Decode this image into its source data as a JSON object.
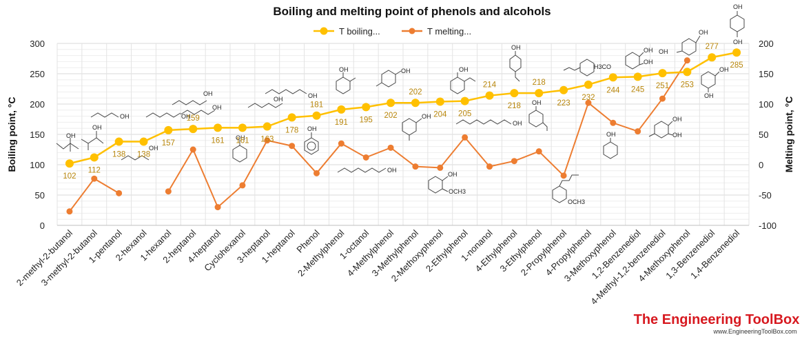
{
  "chart_data": {
    "type": "line",
    "title": "Boiling and melting point of phenols and alcohols",
    "categories": [
      "2-methyl-2-butanol",
      "3-methyl-2-butanol",
      "1-pentanol",
      "2-hexanol",
      "1-hexanol",
      "2-heptanol",
      "4-heptanol",
      "Cyclohexanol",
      "3-heptanol",
      "1-heptanol",
      "Phenol",
      "2-Methylphenol",
      "1-octanol",
      "4-Methylphenol",
      "3-Methylphenol",
      "2-Methoxyphenol",
      "2-Ethylphenol",
      "1-nonanol",
      "4-Ethylphenol",
      "3-Ethylphenol",
      "2-Propylphenol",
      "4-Propylphenol",
      "3-Methoxyphenol",
      "1,2-Benzenediol",
      "4-Methyl-1,2-benzenediol",
      "4-Methoxyphenol",
      "1,3-Benzenediol",
      "1,4-Benzenediol"
    ],
    "series": [
      {
        "name": "T boiling...",
        "axis": "left",
        "color": "#FFC000",
        "values": [
          102,
          112,
          138,
          138,
          157,
          159,
          161,
          161,
          163,
          178,
          181,
          191,
          195,
          202,
          202,
          204,
          205,
          214,
          218,
          218,
          223,
          232,
          244,
          245,
          251,
          253,
          277,
          285
        ],
        "labels": [
          "102",
          "112",
          "138",
          "138",
          "157",
          "159",
          "161",
          "161",
          "163",
          "178",
          "181",
          "191",
          "195",
          "202",
          "202",
          "204",
          "205",
          "214",
          "218",
          "218",
          "223",
          "232",
          "244",
          "245",
          "251",
          "253",
          "277",
          "285"
        ]
      },
      {
        "name": "T melting...",
        "axis": "right",
        "color": "#ED7D31",
        "values": [
          -77,
          -23,
          -47,
          null,
          -44,
          25,
          -70,
          -34,
          40,
          31,
          -14,
          35,
          12,
          28,
          -3,
          -5,
          45,
          -3,
          6,
          22,
          -18,
          102,
          69,
          55,
          109,
          172,
          null,
          null
        ]
      }
    ],
    "ylabel_left": "Boiling point, °C",
    "ylabel_right": "Melting point, °C",
    "ylim_left": [
      0,
      300
    ],
    "ylim_right": [
      -100,
      200
    ],
    "yticks_left": [
      "0",
      "50",
      "100",
      "150",
      "200",
      "250",
      "300"
    ],
    "yticks_right": [
      "-100",
      "-50",
      "0",
      "50",
      "100",
      "150",
      "200"
    ],
    "grid": true,
    "legend": "top-center"
  },
  "structure_labels": [
    "OH",
    "OH",
    "OH",
    "OH",
    "OH",
    "OH",
    "OH",
    "OH",
    "OH",
    "OH",
    "OH",
    "OH",
    "OH",
    "OH",
    "OH",
    "OH",
    "OH",
    "OH",
    "OH",
    "OH",
    "OCH3",
    "OCH3",
    "H3CO",
    "OH",
    "OH",
    "OH",
    "OH",
    "OH",
    "OH",
    "OH",
    "OH",
    "OH"
  ],
  "branding": {
    "name": "The Engineering ToolBox",
    "url": "www.EngineeringToolBox.com"
  }
}
